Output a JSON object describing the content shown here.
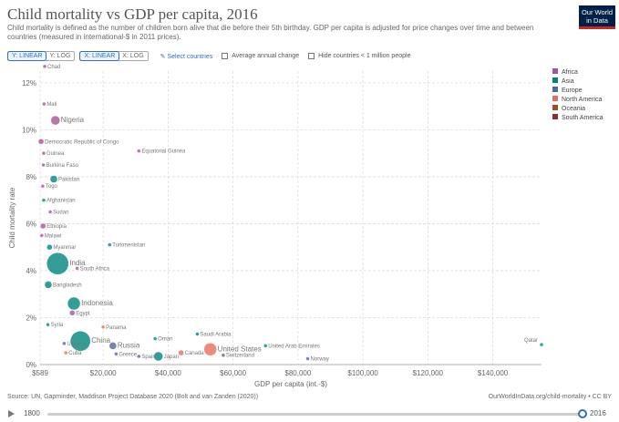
{
  "title": "Child mortality vs GDP per capita, 2016",
  "subtitle": "Child mortality is defined as the number of children born alive that die before their 5th birthday. GDP per capita is adjusted for price changes over time and between countries (measured in international-$ in 2011 prices).",
  "logo_line1": "Our World",
  "logo_line2": "in Data",
  "controls": {
    "y_linear": "Y: LINEAR",
    "y_log": "Y: LOG",
    "x_linear": "X: LINEAR",
    "x_log": "X: LOG",
    "select_countries": "Select countries",
    "avg_change": "Average annual change",
    "hide_small": "Hide countries < 1 million people"
  },
  "footer": {
    "source": "Source: UN, Gapminder, Maddison Project Database 2020 (Bolt and van Zanden (2020))",
    "url": "OurWorldInData.org/child-mortality • CC BY"
  },
  "timeline": {
    "start": "1800",
    "end": "2016"
  },
  "chart_data": {
    "type": "scatter",
    "xlabel": "GDP per capita (int.-$)",
    "ylabel": "Child mortality rate",
    "xlim": [
      589,
      155000
    ],
    "ylim": [
      0,
      12.5
    ],
    "x_ticks": [
      {
        "v": 589,
        "label": "$589"
      },
      {
        "v": 20000,
        "label": "$20,000"
      },
      {
        "v": 40000,
        "label": "$40,000"
      },
      {
        "v": 60000,
        "label": "$60,000"
      },
      {
        "v": 80000,
        "label": "$80,000"
      },
      {
        "v": 100000,
        "label": "$100,000"
      },
      {
        "v": 120000,
        "label": "$120,000"
      },
      {
        "v": 140000,
        "label": "$140,000"
      }
    ],
    "y_ticks": [
      {
        "v": 0,
        "label": "0%"
      },
      {
        "v": 2,
        "label": "2%"
      },
      {
        "v": 4,
        "label": "4%"
      },
      {
        "v": 6,
        "label": "6%"
      },
      {
        "v": 8,
        "label": "8%"
      },
      {
        "v": 10,
        "label": "10%"
      },
      {
        "v": 12,
        "label": "12%"
      }
    ],
    "legend": [
      {
        "name": "Africa",
        "color": "#a2559c"
      },
      {
        "name": "Asia",
        "color": "#00847e"
      },
      {
        "name": "Europe",
        "color": "#4c6a9c"
      },
      {
        "name": "North America",
        "color": "#e56e5a"
      },
      {
        "name": "Oceania",
        "color": "#9a5129"
      },
      {
        "name": "South America",
        "color": "#883039"
      }
    ],
    "points": [
      {
        "label": "Chad",
        "x": 2000,
        "y": 12.7,
        "r": 2,
        "region": "Africa"
      },
      {
        "label": "Mali",
        "x": 1800,
        "y": 11.1,
        "r": 2,
        "region": "Africa"
      },
      {
        "label": "Nigeria",
        "x": 5300,
        "y": 10.4,
        "r": 5,
        "region": "Africa",
        "big": true
      },
      {
        "label": "Democratic Republic of Congo",
        "x": 900,
        "y": 9.5,
        "r": 3,
        "region": "Africa"
      },
      {
        "label": "Equatorial Guinea",
        "x": 31000,
        "y": 9.1,
        "r": 2,
        "region": "Africa"
      },
      {
        "label": "Guinea",
        "x": 1700,
        "y": 9.0,
        "r": 2,
        "region": "Africa"
      },
      {
        "label": "Burkina Faso",
        "x": 1600,
        "y": 8.5,
        "r": 2,
        "region": "Africa"
      },
      {
        "label": "Pakistan",
        "x": 4800,
        "y": 7.9,
        "r": 4,
        "region": "Asia"
      },
      {
        "label": "Togo",
        "x": 1400,
        "y": 7.6,
        "r": 2,
        "region": "Africa"
      },
      {
        "label": "Afghanistan",
        "x": 1700,
        "y": 7.0,
        "r": 2,
        "region": "Asia"
      },
      {
        "label": "Sudan",
        "x": 3700,
        "y": 6.5,
        "r": 2,
        "region": "Africa"
      },
      {
        "label": "Ethiopia",
        "x": 1500,
        "y": 5.9,
        "r": 3,
        "region": "Africa"
      },
      {
        "label": "Malawi",
        "x": 1100,
        "y": 5.5,
        "r": 2,
        "region": "Africa"
      },
      {
        "label": "Turkmenistan",
        "x": 22000,
        "y": 5.1,
        "r": 2,
        "region": "Asia"
      },
      {
        "label": "Myanmar",
        "x": 3500,
        "y": 5.0,
        "r": 3,
        "region": "Asia"
      },
      {
        "label": "India",
        "x": 6000,
        "y": 4.3,
        "r": 12,
        "region": "Asia",
        "big": true
      },
      {
        "label": "South Africa",
        "x": 12000,
        "y": 4.1,
        "r": 2,
        "region": "Africa"
      },
      {
        "label": "Bangladesh",
        "x": 3100,
        "y": 3.4,
        "r": 4,
        "region": "Asia"
      },
      {
        "label": "Indonesia",
        "x": 11000,
        "y": 2.6,
        "r": 7,
        "region": "Asia",
        "big": true
      },
      {
        "label": "Egypt",
        "x": 10500,
        "y": 2.2,
        "r": 3,
        "region": "Africa"
      },
      {
        "label": "Syria",
        "x": 3000,
        "y": 1.7,
        "r": 2,
        "region": "Asia"
      },
      {
        "label": "Panama",
        "x": 20000,
        "y": 1.6,
        "r": 2,
        "region": "North America"
      },
      {
        "label": "China",
        "x": 13000,
        "y": 1.0,
        "r": 11,
        "region": "Asia",
        "big": true
      },
      {
        "label": "Saudi Arabia",
        "x": 49000,
        "y": 1.3,
        "r": 2,
        "region": "Asia"
      },
      {
        "label": "Oman",
        "x": 36000,
        "y": 1.1,
        "r": 2,
        "region": "Asia"
      },
      {
        "label": "Russia",
        "x": 23000,
        "y": 0.8,
        "r": 4,
        "region": "Europe",
        "big": true
      },
      {
        "label": "United States",
        "x": 53000,
        "y": 0.65,
        "r": 7,
        "region": "North America",
        "big": true
      },
      {
        "label": "United Arab Emirates",
        "x": 70000,
        "y": 0.8,
        "r": 2,
        "region": "Asia"
      },
      {
        "label": "Qatar",
        "x": 155000,
        "y": 0.85,
        "r": 2,
        "region": "Asia"
      },
      {
        "label": "Ukraine",
        "x": 8000,
        "y": 0.9,
        "r": 2,
        "region": "Europe"
      },
      {
        "label": "Cuba",
        "x": 8500,
        "y": 0.5,
        "r": 2,
        "region": "North America"
      },
      {
        "label": "Greece",
        "x": 24000,
        "y": 0.45,
        "r": 2,
        "region": "Europe"
      },
      {
        "label": "Spain",
        "x": 31000,
        "y": 0.35,
        "r": 2,
        "region": "Europe"
      },
      {
        "label": "Japan",
        "x": 37000,
        "y": 0.35,
        "r": 5,
        "region": "Asia"
      },
      {
        "label": "Canada",
        "x": 44000,
        "y": 0.5,
        "r": 3,
        "region": "North America"
      },
      {
        "label": "Switzerland",
        "x": 57000,
        "y": 0.4,
        "r": 2,
        "region": "Europe"
      },
      {
        "label": "Norway",
        "x": 83000,
        "y": 0.25,
        "r": 2,
        "region": "Europe"
      }
    ]
  }
}
